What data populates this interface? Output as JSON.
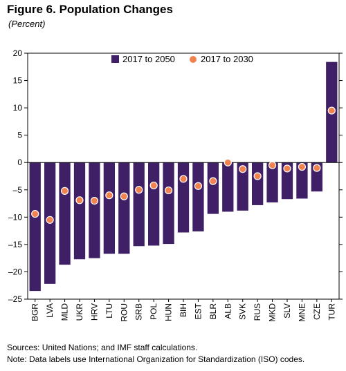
{
  "header": {
    "title": "Figure 6. Population Changes",
    "subtitle": "(Percent)"
  },
  "footer": {
    "sources": "Sources: United Nations; and IMF staff calculations.",
    "note": "Note: Data labels use International Organization for Standardization (ISO) codes."
  },
  "colors": {
    "bar": "#3f1f66",
    "dot": "#f0834f",
    "dot_stroke": "#ffffff"
  },
  "chart_data": {
    "type": "bar",
    "categories": [
      "BGR",
      "LVA",
      "MLD",
      "UKR",
      "HRV",
      "LTU",
      "ROU",
      "SRB",
      "POL",
      "HUN",
      "BIH",
      "EST",
      "BLR",
      "ALB",
      "SVK",
      "RUS",
      "MKD",
      "SLV",
      "MNE",
      "CZE",
      "TUR"
    ],
    "series": [
      {
        "name": "2017 to 2050",
        "type": "bar",
        "values": [
          -23.5,
          -22.2,
          -18.7,
          -17.7,
          -17.5,
          -16.7,
          -16.7,
          -15.3,
          -15.2,
          -14.9,
          -12.8,
          -12.6,
          -9.4,
          -9.0,
          -8.8,
          -7.8,
          -7.3,
          -6.7,
          -6.6,
          -5.3,
          18.4
        ]
      },
      {
        "name": "2017 to 2030",
        "type": "scatter",
        "values": [
          -9.4,
          -10.5,
          -5.2,
          -6.9,
          -7.0,
          -6.0,
          -6.2,
          -5.0,
          -4.2,
          -5.1,
          -3.0,
          -4.3,
          -3.4,
          0.0,
          -1.2,
          -2.5,
          -0.5,
          -1.1,
          -0.8,
          -1.0,
          9.5
        ]
      }
    ],
    "ylim": [
      -25,
      20
    ],
    "yticks": [
      20,
      15,
      10,
      5,
      0,
      -5,
      -10,
      -15,
      -20,
      -25
    ],
    "ytick_labels": [
      "20",
      "15",
      "10",
      "5",
      "0",
      "–5",
      "–10",
      "–15",
      "–20",
      "–25"
    ],
    "legend_position": "top",
    "grid": false
  }
}
